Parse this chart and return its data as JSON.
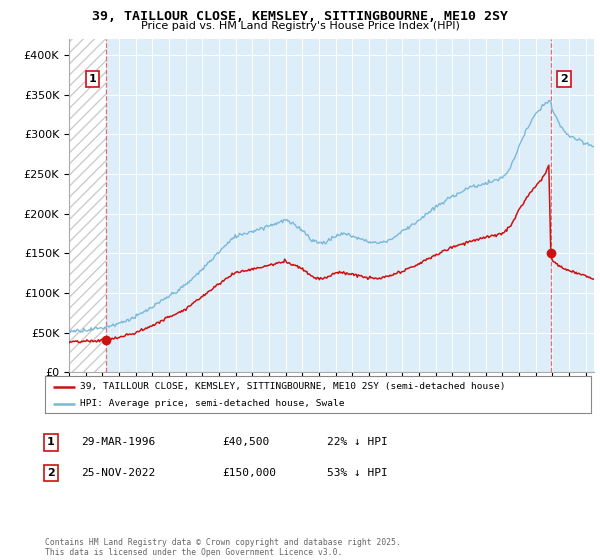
{
  "title": "39, TAILLOUR CLOSE, KEMSLEY, SITTINGBOURNE, ME10 2SY",
  "subtitle": "Price paid vs. HM Land Registry's House Price Index (HPI)",
  "legend_line1": "39, TAILLOUR CLOSE, KEMSLEY, SITTINGBOURNE, ME10 2SY (semi-detached house)",
  "legend_line2": "HPI: Average price, semi-detached house, Swale",
  "annotation1_date": "29-MAR-1996",
  "annotation1_price": "£40,500",
  "annotation1_hpi": "22% ↓ HPI",
  "annotation2_date": "25-NOV-2022",
  "annotation2_price": "£150,000",
  "annotation2_hpi": "53% ↓ HPI",
  "footer": "Contains HM Land Registry data © Crown copyright and database right 2025.\nThis data is licensed under the Open Government Licence v3.0.",
  "hpi_color": "#7ab8d8",
  "price_color": "#cc1111",
  "sale1_x": 1996.23,
  "sale1_y": 40500,
  "sale2_x": 2022.9,
  "sale2_y": 150000,
  "xmin": 1994,
  "xmax": 2025.5,
  "ymin": 0,
  "ymax": 420000,
  "yticks": [
    0,
    50000,
    100000,
    150000,
    200000,
    250000,
    300000,
    350000,
    400000
  ],
  "hatch_color": "#cccccc",
  "bg_color": "#ddeef8",
  "grid_color": "#ffffff"
}
